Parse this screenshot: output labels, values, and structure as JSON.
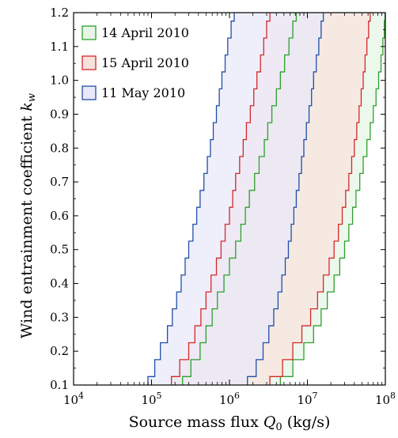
{
  "chart_data": {
    "type": "area",
    "xlabel": "Source mass flux",
    "xlabel_symbol": "Q",
    "xlabel_sub": "0",
    "xlabel_unit": "(kg/s)",
    "ylabel": "Wind entrainment coefficient",
    "ylabel_symbol": "k",
    "ylabel_sub": "w",
    "x_scale": "log",
    "xlim": [
      10000,
      100000000
    ],
    "ylim": [
      0.1,
      1.2
    ],
    "x_ticks": [
      {
        "value": 10000,
        "base": "10",
        "exp": "4"
      },
      {
        "value": 100000,
        "base": "10",
        "exp": "5"
      },
      {
        "value": 1000000,
        "base": "10",
        "exp": "6"
      },
      {
        "value": 10000000,
        "base": "10",
        "exp": "7"
      },
      {
        "value": 100000000,
        "base": "10",
        "exp": "8"
      }
    ],
    "y_ticks": [
      "0.1",
      "0.2",
      "0.3",
      "0.4",
      "0.5",
      "0.6",
      "0.7",
      "0.8",
      "0.9",
      "1.0",
      "1.1",
      "1.2"
    ],
    "grid": false,
    "legend_position": "top-left",
    "series": [
      {
        "name": "14 April 2010",
        "color": "#2ca02c",
        "fill": "#e6f5e6",
        "k": [
          0.1,
          0.15,
          0.2,
          0.25,
          0.3,
          0.35,
          0.4,
          0.45,
          0.5,
          0.55,
          0.6,
          0.65,
          0.7,
          0.75,
          0.8,
          0.85,
          0.9,
          0.95,
          1.0,
          1.05,
          1.1,
          1.15,
          1.2
        ],
        "lower": [
          250000,
          320000,
          420000,
          500000,
          600000,
          700000,
          850000,
          1000000,
          1200000,
          1400000,
          1600000,
          1800000,
          2100000,
          2400000,
          2800000,
          3100000,
          3500000,
          4000000,
          4500000,
          5100000,
          5800000,
          6500000,
          7200000
        ],
        "upper": [
          4500000,
          6500000,
          9000000,
          12000000,
          15000000,
          18000000,
          22000000,
          26000000,
          30000000,
          34000000,
          38000000,
          42000000,
          47000000,
          52000000,
          58000000,
          64000000,
          70000000,
          76000000,
          82000000,
          88000000,
          93000000,
          97000000,
          99000000
        ]
      },
      {
        "name": "15 April 2010",
        "color": "#d62728",
        "fill": "#f9e2dd",
        "k": [
          0.1,
          0.15,
          0.2,
          0.25,
          0.3,
          0.35,
          0.4,
          0.45,
          0.5,
          0.55,
          0.6,
          0.65,
          0.7,
          0.75,
          0.8,
          0.85,
          0.9,
          0.95,
          1.0,
          1.05,
          1.1,
          1.15,
          1.2
        ],
        "lower": [
          180000,
          230000,
          300000,
          360000,
          430000,
          500000,
          580000,
          680000,
          780000,
          880000,
          1000000,
          1100000,
          1200000,
          1350000,
          1500000,
          1650000,
          1850000,
          2050000,
          2250000,
          2500000,
          2750000,
          3000000,
          3300000
        ],
        "upper": [
          3300000,
          4800000,
          6500000,
          8500000,
          11000000,
          13500000,
          16000000,
          19000000,
          22000000,
          25000000,
          28000000,
          31000000,
          34000000,
          37000000,
          40000000,
          43000000,
          46000000,
          49000000,
          52000000,
          55000000,
          58000000,
          61000000,
          64000000
        ]
      },
      {
        "name": "11 May 2010",
        "color": "#1f4fa8",
        "fill": "#e8e8fa",
        "k": [
          0.1,
          0.15,
          0.2,
          0.25,
          0.3,
          0.35,
          0.4,
          0.45,
          0.5,
          0.55,
          0.6,
          0.65,
          0.7,
          0.75,
          0.8,
          0.85,
          0.9,
          0.95,
          1.0,
          1.05,
          1.1,
          1.15,
          1.2
        ],
        "lower": [
          90000,
          110000,
          130000,
          160000,
          185000,
          210000,
          240000,
          270000,
          300000,
          340000,
          380000,
          420000,
          470000,
          520000,
          570000,
          620000,
          680000,
          740000,
          800000,
          880000,
          950000,
          1050000,
          1150000
        ],
        "upper": [
          1700000,
          2200000,
          2700000,
          3200000,
          3700000,
          4200000,
          4700000,
          5200000,
          5700000,
          6200000,
          6700000,
          7200000,
          7800000,
          8400000,
          9000000,
          9700000,
          10500000,
          11300000,
          12000000,
          13000000,
          14000000,
          15000000,
          16000000
        ]
      }
    ]
  }
}
